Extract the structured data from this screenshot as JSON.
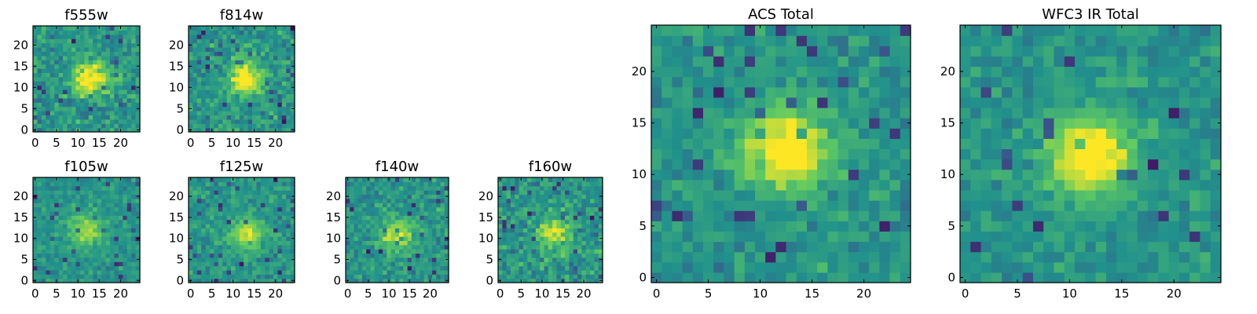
{
  "chart_data": [
    {
      "type": "heatmap",
      "id": "f555w",
      "title": "f555w",
      "xticks": [
        "0",
        "5",
        "10",
        "15",
        "20"
      ],
      "yticks": [
        "0",
        "5",
        "10",
        "15",
        "20"
      ],
      "grid_size": 25,
      "blob_center": [
        13,
        12
      ],
      "blob_strength": 0.55,
      "noise": 0.45
    },
    {
      "type": "heatmap",
      "id": "f814w",
      "title": "f814w",
      "xticks": [
        "0",
        "5",
        "10",
        "15",
        "20"
      ],
      "yticks": [
        "0",
        "5",
        "10",
        "15",
        "20"
      ],
      "grid_size": 25,
      "blob_center": [
        13,
        12
      ],
      "blob_strength": 0.55,
      "noise": 0.45
    },
    {
      "type": "heatmap",
      "id": "f105w",
      "title": "f105w",
      "xticks": [
        "0",
        "5",
        "10",
        "15",
        "20"
      ],
      "yticks": [
        "0",
        "5",
        "10",
        "15",
        "20"
      ],
      "grid_size": 25,
      "blob_center": [
        12,
        12
      ],
      "blob_strength": 0.35,
      "noise": 0.3
    },
    {
      "type": "heatmap",
      "id": "f125w",
      "title": "f125w",
      "xticks": [
        "0",
        "5",
        "10",
        "15",
        "20"
      ],
      "yticks": [
        "0",
        "5",
        "10",
        "15",
        "20"
      ],
      "grid_size": 25,
      "blob_center": [
        13,
        11
      ],
      "blob_strength": 0.4,
      "noise": 0.35
    },
    {
      "type": "heatmap",
      "id": "f140w",
      "title": "f140w",
      "xticks": [
        "0",
        "5",
        "10",
        "15",
        "20"
      ],
      "yticks": [
        "0",
        "5",
        "10",
        "15",
        "20"
      ],
      "grid_size": 25,
      "blob_center": [
        12,
        11
      ],
      "blob_strength": 0.35,
      "noise": 0.4
    },
    {
      "type": "heatmap",
      "id": "f160w",
      "title": "f160w",
      "xticks": [
        "0",
        "5",
        "10",
        "15",
        "20"
      ],
      "yticks": [
        "0",
        "5",
        "10",
        "15",
        "20"
      ],
      "grid_size": 25,
      "blob_center": [
        13,
        11
      ],
      "blob_strength": 0.4,
      "noise": 0.45
    },
    {
      "type": "heatmap",
      "id": "acs-total",
      "title": "ACS Total",
      "xticks": [
        "0",
        "5",
        "10",
        "15",
        "20"
      ],
      "yticks": [
        "0",
        "5",
        "10",
        "15",
        "20"
      ],
      "grid_size": 25,
      "blob_center": [
        12.5,
        12.5
      ],
      "blob_strength": 0.6,
      "noise": 0.35
    },
    {
      "type": "heatmap",
      "id": "wfc3-ir-total",
      "title": "WFC3 IR Total",
      "xticks": [
        "0",
        "5",
        "10",
        "15",
        "20"
      ],
      "yticks": [
        "0",
        "5",
        "10",
        "15",
        "20"
      ],
      "grid_size": 25,
      "blob_center": [
        12,
        12
      ],
      "blob_strength": 0.6,
      "noise": 0.3
    }
  ],
  "colors": {
    "colormap": [
      "#440154",
      "#3b528b",
      "#21918c",
      "#5ec962",
      "#fde725"
    ],
    "frame": "#000000",
    "background": "#ffffff"
  }
}
